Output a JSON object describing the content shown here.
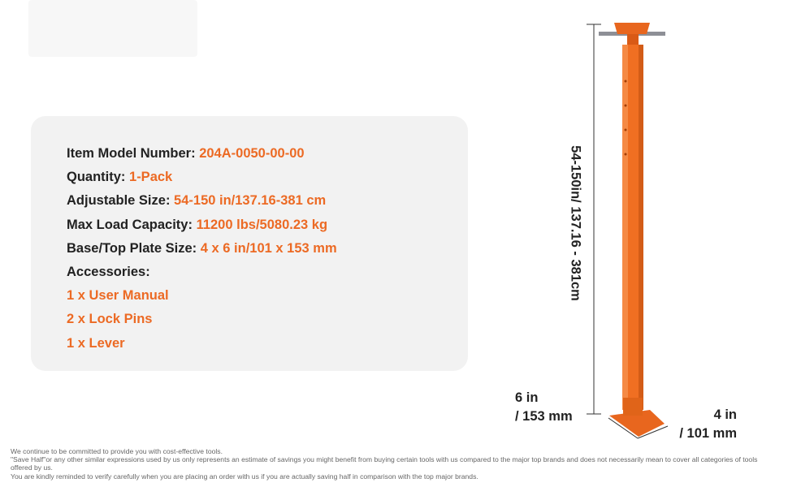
{
  "specs": [
    {
      "label": "Item Model Number:",
      "value": "204A-0050-00-00"
    },
    {
      "label": "Quantity:",
      "value": "1-Pack"
    },
    {
      "label": "Adjustable Size:",
      "value": "54-150 in/137.16-381 cm"
    },
    {
      "label": "Max Load Capacity:",
      "value": "11200 lbs/5080.23 kg"
    },
    {
      "label": "Base/Top Plate Size:",
      "value": "4 x 6 in/101 x 153 mm"
    }
  ],
  "accessories": {
    "heading": "Accessories:",
    "items": [
      "1 x User Manual",
      "2 x Lock Pins",
      "1 x Lever"
    ]
  },
  "dimensions": {
    "height": "54-150in/ 137.16 - 381cm",
    "length_in": "6 in",
    "length_mm": "/ 153 mm",
    "width_in": "4 in",
    "width_mm": "/ 101 mm"
  },
  "disclaimer": [
    "We continue to be committed to provide you with cost-effective tools.",
    "\"Save Half\"or any other similar expressions used by us only represents an estimate of savings you might benefit from buying certain tools with us compared to the major top brands and does not necessarily mean to cover all categories of tools offered by us.",
    "You are kindly reminded to verify carefully when you are placing an order with us if you are actually saving half in comparison with the top major brands."
  ]
}
